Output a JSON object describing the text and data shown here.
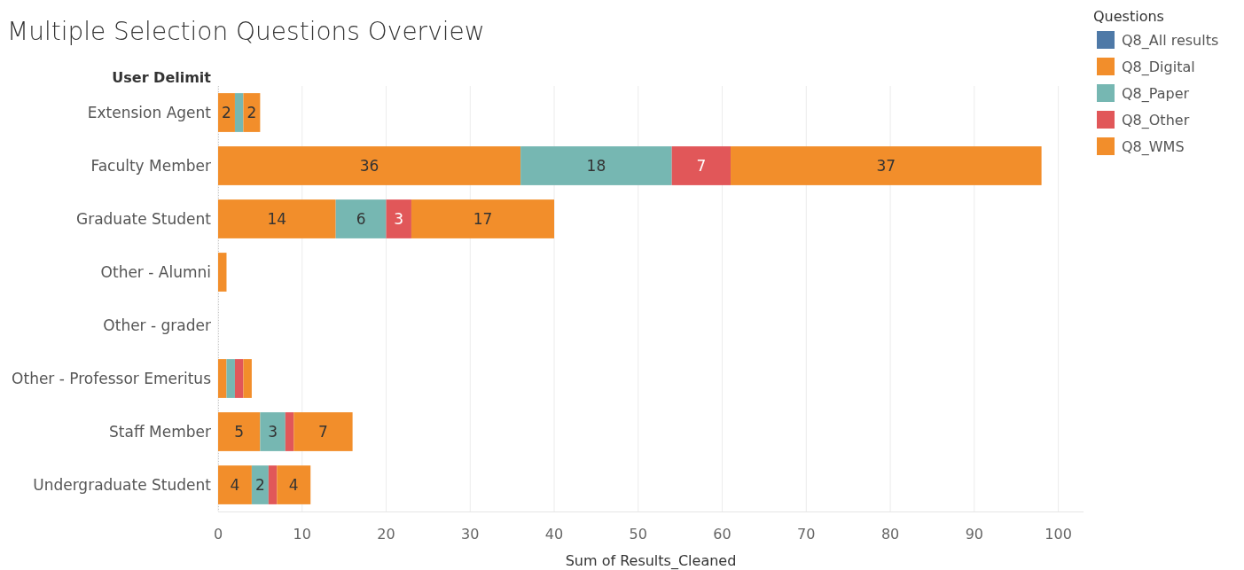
{
  "chart_data": {
    "type": "bar",
    "orientation": "horizontal",
    "stacked": true,
    "title": "Multiple Selection Questions Overview",
    "ylabel": "User Delimit",
    "xlabel": "Sum of Results_Cleaned",
    "legend_title": "Questions",
    "categories": [
      "Extension Agent",
      "Faculty Member",
      "Graduate Student",
      "Other - Alumni",
      "Other - grader",
      "Other - Professor Emeritus",
      "Staff Member",
      "Undergraduate Student"
    ],
    "series": [
      {
        "name": "Q8_All results",
        "color": "#4e79a7",
        "values": [
          null,
          null,
          null,
          null,
          null,
          null,
          null,
          null
        ]
      },
      {
        "name": "Q8_Digital",
        "color": "#f28e2b",
        "values": [
          2,
          36,
          14,
          1,
          null,
          1,
          5,
          4
        ],
        "value_labels": [
          "2",
          "36",
          "14",
          null,
          null,
          null,
          "5",
          "4"
        ]
      },
      {
        "name": "Q8_Paper",
        "color": "#76b7b2",
        "values": [
          1,
          18,
          6,
          null,
          null,
          1,
          3,
          2
        ],
        "value_labels": [
          null,
          "18",
          "6",
          null,
          null,
          null,
          "3",
          "2"
        ]
      },
      {
        "name": "Q8_Other",
        "color": "#e15759",
        "values": [
          null,
          7,
          3,
          null,
          null,
          1,
          1,
          1
        ],
        "value_labels": [
          null,
          "7",
          "3",
          null,
          null,
          null,
          null,
          null
        ]
      },
      {
        "name": "Q8_WMS",
        "color": "#f28e2b",
        "values": [
          2,
          37,
          17,
          null,
          null,
          1,
          7,
          4
        ],
        "value_labels": [
          "2",
          "37",
          "17",
          null,
          null,
          null,
          "7",
          "4"
        ]
      }
    ],
    "xlim": [
      0,
      103
    ],
    "xticks": [
      0,
      10,
      20,
      30,
      40,
      50,
      60,
      70,
      80,
      90,
      100
    ],
    "grid": "x",
    "legend": "top right"
  }
}
